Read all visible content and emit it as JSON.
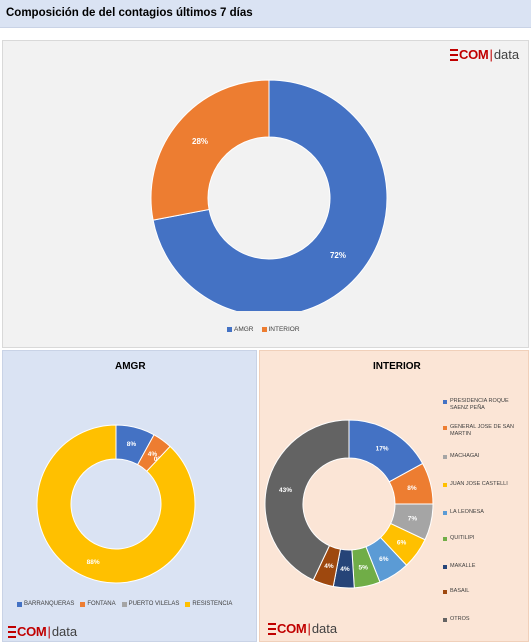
{
  "title": "Composición de del contagios últimos 7 días",
  "logo": {
    "com": "COM",
    "sep": "|",
    "data": "data"
  },
  "chart_data": [
    {
      "type": "pie",
      "donut": true,
      "categories": [
        "AMGR",
        "INTERIOR"
      ],
      "values": [
        72,
        28
      ],
      "labels": [
        "72%",
        "28%"
      ],
      "colors": [
        "#4472c4",
        "#ed7d31"
      ],
      "legend": "bottom"
    },
    {
      "type": "pie",
      "donut": true,
      "title": "AMGR",
      "categories": [
        "BARRANQUERAS",
        "FONTANA",
        "PUERTO VILELAS",
        "RESISTENCIA"
      ],
      "values": [
        8,
        4,
        0,
        88
      ],
      "labels": [
        "8%",
        "4%",
        "0%",
        "88%"
      ],
      "colors": [
        "#4472c4",
        "#ed7d31",
        "#a5a5a5",
        "#ffc000"
      ],
      "legend": "bottom"
    },
    {
      "type": "pie",
      "donut": true,
      "title": "INTERIOR",
      "categories": [
        "PRESIDENCIA ROQUE SAENZ PEÑA",
        "GENERAL JOSE DE SAN MARTIN",
        "MACHAGAI",
        "JUAN JOSE CASTELLI",
        "LA LEONESA",
        "QUITILIPI",
        "MAKALLE",
        "BASAIL",
        "OTROS"
      ],
      "values": [
        17,
        8,
        7,
        6,
        6,
        5,
        4,
        4,
        43
      ],
      "labels": [
        "17%",
        "8%",
        "7%",
        "6%",
        "6%",
        "5%",
        "4%",
        "4%",
        "43%"
      ],
      "colors": [
        "#4472c4",
        "#ed7d31",
        "#a5a5a5",
        "#ffc000",
        "#5b9bd5",
        "#70ad47",
        "#264478",
        "#9e480e",
        "#636363"
      ],
      "legend": "right"
    }
  ]
}
